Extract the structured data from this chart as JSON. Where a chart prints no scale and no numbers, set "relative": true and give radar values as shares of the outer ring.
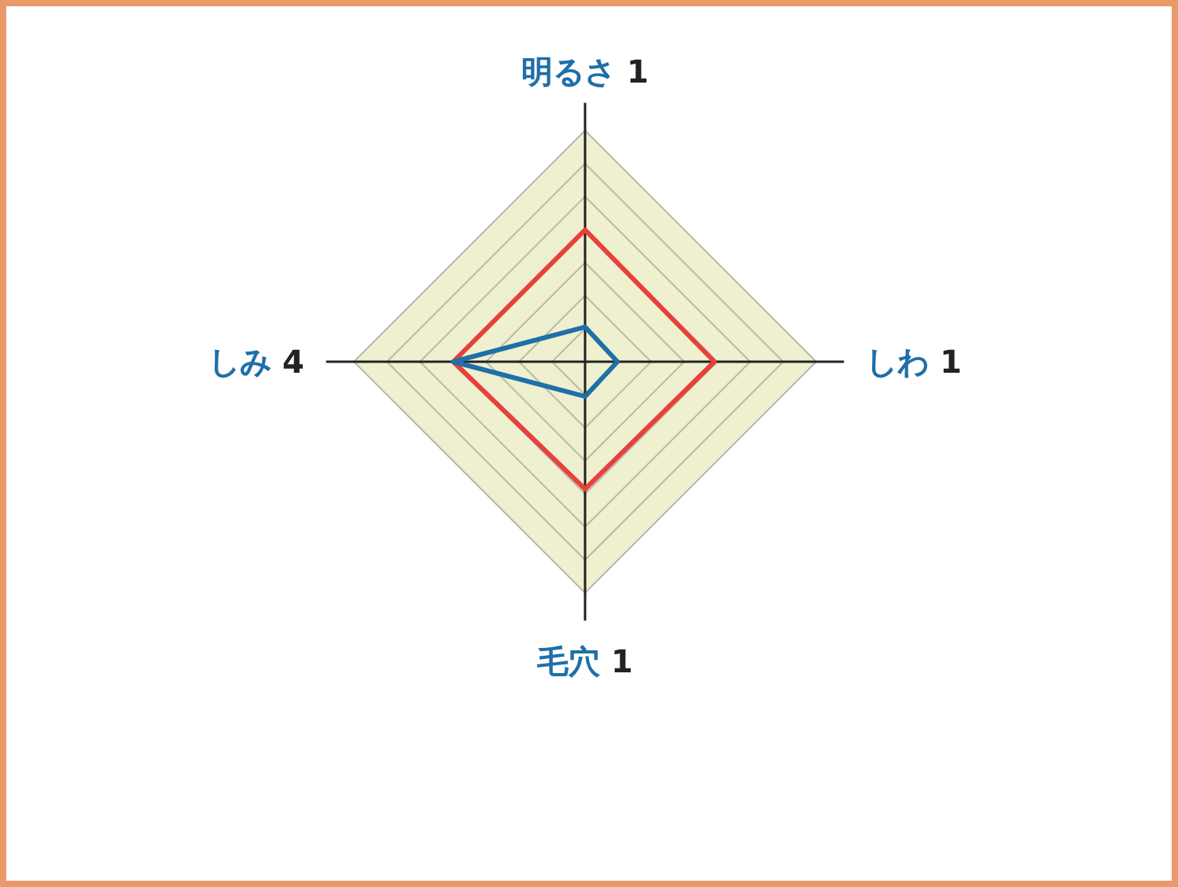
{
  "chart_data": {
    "type": "radar",
    "categories": [
      "明るさ 1",
      "しわ 1",
      "毛穴 1",
      "しみ 4"
    ],
    "relative": true,
    "grid": true,
    "series": [
      {
        "color": "#e8403a",
        "values": [
          0.57,
          0.56,
          0.55,
          0.57
        ]
      },
      {
        "color": "#1f6fa8",
        "values": [
          0.15,
          0.14,
          0.15,
          0.57
        ]
      }
    ]
  }
}
